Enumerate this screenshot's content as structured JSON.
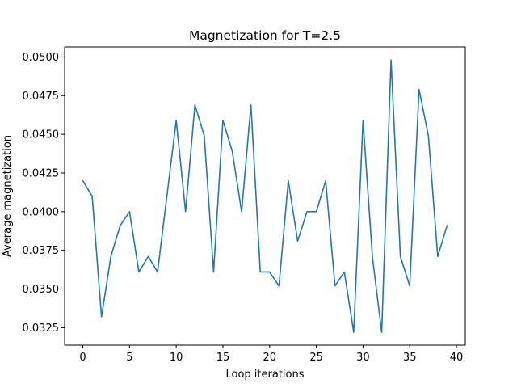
{
  "chart_data": {
    "type": "line",
    "title": "Magnetization for T=2.5",
    "xlabel": "Loop iterations",
    "ylabel": "Average magnetization",
    "xlim": [
      -1.95,
      40.95
    ],
    "ylim": [
      0.03137,
      0.05065
    ],
    "xticks": [
      0,
      5,
      10,
      15,
      20,
      25,
      30,
      35,
      40
    ],
    "xtick_labels": [
      "0",
      "5",
      "10",
      "15",
      "20",
      "25",
      "30",
      "35",
      "40"
    ],
    "yticks": [
      0.0325,
      0.035,
      0.0375,
      0.04,
      0.0425,
      0.045,
      0.0475,
      0.05
    ],
    "ytick_labels": [
      "0.0325",
      "0.0350",
      "0.0375",
      "0.0400",
      "0.0425",
      "0.0450",
      "0.0475",
      "0.0500"
    ],
    "grid": false,
    "series": [
      {
        "color": "#1f77b4",
        "x": [
          0,
          1,
          2,
          3,
          4,
          5,
          6,
          7,
          8,
          9,
          10,
          11,
          12,
          13,
          14,
          15,
          16,
          17,
          18,
          19,
          20,
          21,
          22,
          23,
          24,
          25,
          26,
          27,
          28,
          29,
          30,
          31,
          32,
          33,
          34,
          35,
          36,
          37,
          38,
          39
        ],
        "values": [
          0.042,
          0.041,
          0.0332,
          0.0371,
          0.0391,
          0.04,
          0.0361,
          0.0371,
          0.0361,
          0.041,
          0.0459,
          0.04,
          0.0469,
          0.0449,
          0.0361,
          0.0459,
          0.0439,
          0.04,
          0.0469,
          0.0361,
          0.0361,
          0.0352,
          0.042,
          0.0381,
          0.04,
          0.04,
          0.042,
          0.0352,
          0.0361,
          0.0322,
          0.0459,
          0.0371,
          0.0322,
          0.0498,
          0.0371,
          0.0352,
          0.0479,
          0.0449,
          0.0371,
          0.0391
        ]
      }
    ]
  }
}
